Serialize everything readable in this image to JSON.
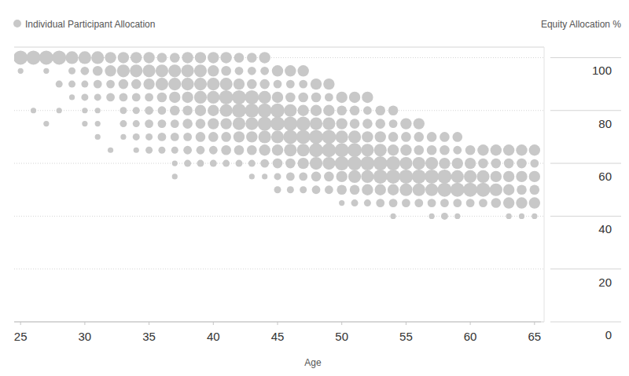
{
  "chart_data": {
    "type": "scatter",
    "x_label": "Age",
    "y_label": "Equity Allocation %",
    "legend": "top-left",
    "grid": true,
    "marker": "circle",
    "xlim": [
      24.5,
      65.5
    ],
    "xticks": [
      25,
      30,
      35,
      40,
      45,
      50,
      55,
      60,
      65
    ],
    "ylim": [
      0,
      104
    ],
    "yticks": [
      0,
      20,
      40,
      60,
      80,
      100
    ],
    "series": [
      {
        "name": "Individual Participant Allocation",
        "color": "#c8c8c8",
        "x": [
          25,
          25,
          26,
          26,
          27,
          27,
          27,
          28,
          28,
          28,
          29,
          29,
          29,
          29,
          30,
          30,
          30,
          30,
          30,
          30,
          31,
          31,
          31,
          31,
          31,
          31,
          31,
          32,
          32,
          32,
          32,
          32,
          33,
          33,
          33,
          33,
          33,
          33,
          33,
          34,
          34,
          34,
          34,
          34,
          34,
          34,
          34,
          35,
          35,
          35,
          35,
          35,
          35,
          35,
          35,
          36,
          36,
          36,
          36,
          36,
          36,
          36,
          36,
          37,
          37,
          37,
          37,
          37,
          37,
          37,
          37,
          37,
          37,
          38,
          38,
          38,
          38,
          38,
          38,
          38,
          38,
          38,
          39,
          39,
          39,
          39,
          39,
          39,
          39,
          39,
          39,
          40,
          40,
          40,
          40,
          40,
          40,
          40,
          40,
          40,
          41,
          41,
          41,
          41,
          41,
          41,
          41,
          41,
          41,
          42,
          42,
          42,
          42,
          42,
          42,
          42,
          42,
          42,
          43,
          43,
          43,
          43,
          43,
          43,
          43,
          43,
          43,
          43,
          44,
          44,
          44,
          44,
          44,
          44,
          44,
          44,
          44,
          44,
          45,
          45,
          45,
          45,
          45,
          45,
          45,
          45,
          45,
          45,
          46,
          46,
          46,
          46,
          46,
          46,
          46,
          46,
          46,
          46,
          47,
          47,
          47,
          47,
          47,
          47,
          47,
          47,
          47,
          47,
          48,
          48,
          48,
          48,
          48,
          48,
          48,
          48,
          48,
          49,
          49,
          49,
          49,
          49,
          49,
          49,
          49,
          49,
          50,
          50,
          50,
          50,
          50,
          50,
          50,
          50,
          50,
          51,
          51,
          51,
          51,
          51,
          51,
          51,
          51,
          51,
          52,
          52,
          52,
          52,
          52,
          52,
          52,
          52,
          52,
          53,
          53,
          53,
          53,
          53,
          53,
          53,
          53,
          54,
          54,
          54,
          54,
          54,
          54,
          54,
          54,
          54,
          55,
          55,
          55,
          55,
          55,
          55,
          55,
          56,
          56,
          56,
          56,
          56,
          56,
          56,
          57,
          57,
          57,
          57,
          57,
          57,
          57,
          58,
          58,
          58,
          58,
          58,
          58,
          58,
          59,
          59,
          59,
          59,
          59,
          59,
          59,
          60,
          60,
          60,
          60,
          60,
          61,
          61,
          61,
          61,
          61,
          62,
          62,
          62,
          62,
          62,
          63,
          63,
          63,
          63,
          63,
          63,
          64,
          64,
          64,
          64,
          64,
          64,
          65,
          65,
          65,
          65,
          65,
          65
        ],
        "values": [
          100,
          95,
          100,
          80,
          100,
          95,
          75,
          100,
          90,
          80,
          100,
          95,
          90,
          85,
          100,
          95,
          90,
          85,
          80,
          75,
          100,
          95,
          90,
          85,
          80,
          75,
          70,
          100,
          95,
          90,
          85,
          65,
          100,
          95,
          90,
          85,
          80,
          75,
          70,
          100,
          95,
          90,
          85,
          80,
          75,
          70,
          65,
          100,
          95,
          90,
          85,
          80,
          75,
          70,
          65,
          100,
          95,
          90,
          85,
          80,
          75,
          70,
          65,
          100,
          95,
          90,
          85,
          80,
          75,
          70,
          65,
          60,
          55,
          100,
          95,
          90,
          85,
          80,
          75,
          70,
          65,
          60,
          100,
          95,
          90,
          85,
          80,
          75,
          70,
          65,
          60,
          100,
          95,
          90,
          85,
          80,
          75,
          70,
          65,
          60,
          100,
          95,
          90,
          85,
          80,
          75,
          70,
          65,
          60,
          100,
          95,
          90,
          85,
          80,
          75,
          70,
          65,
          60,
          100,
          95,
          90,
          85,
          80,
          75,
          70,
          65,
          60,
          55,
          100,
          95,
          90,
          85,
          80,
          75,
          70,
          65,
          60,
          55,
          95,
          90,
          85,
          80,
          75,
          70,
          65,
          60,
          55,
          50,
          95,
          90,
          85,
          80,
          75,
          70,
          65,
          60,
          55,
          50,
          95,
          90,
          85,
          80,
          75,
          70,
          65,
          60,
          55,
          50,
          90,
          85,
          80,
          75,
          70,
          65,
          60,
          55,
          50,
          90,
          85,
          80,
          75,
          70,
          65,
          60,
          55,
          50,
          85,
          80,
          75,
          70,
          65,
          60,
          55,
          50,
          45,
          85,
          80,
          75,
          70,
          65,
          60,
          55,
          50,
          45,
          85,
          80,
          75,
          70,
          65,
          60,
          55,
          50,
          45,
          80,
          75,
          70,
          65,
          60,
          55,
          50,
          45,
          80,
          75,
          70,
          65,
          60,
          55,
          50,
          45,
          40,
          75,
          70,
          65,
          60,
          55,
          50,
          45,
          75,
          70,
          65,
          60,
          55,
          50,
          45,
          70,
          65,
          60,
          55,
          50,
          45,
          40,
          70,
          65,
          60,
          55,
          50,
          45,
          40,
          70,
          65,
          60,
          55,
          50,
          45,
          40,
          65,
          60,
          55,
          50,
          45,
          65,
          60,
          55,
          50,
          45,
          65,
          60,
          55,
          50,
          45,
          65,
          60,
          55,
          50,
          45,
          40,
          65,
          60,
          55,
          50,
          45,
          40,
          65,
          60,
          55,
          50,
          45,
          40
        ],
        "sizes": [
          8,
          2,
          8,
          2,
          8,
          2,
          2,
          8,
          3,
          2,
          7,
          3,
          3,
          2,
          7,
          4,
          3,
          3,
          2,
          2,
          7,
          5,
          4,
          3,
          2,
          2,
          2,
          6,
          6,
          4,
          4,
          2,
          6,
          7,
          5,
          4,
          3,
          3,
          2,
          6,
          7,
          5,
          4,
          3,
          3,
          3,
          2,
          6,
          7,
          6,
          4,
          4,
          4,
          3,
          3,
          5,
          7,
          7,
          5,
          4,
          4,
          4,
          3,
          5,
          7,
          7,
          6,
          5,
          4,
          4,
          3,
          2,
          2,
          6,
          7,
          7,
          6,
          5,
          5,
          4,
          4,
          3,
          6,
          7,
          7,
          7,
          6,
          5,
          5,
          4,
          3,
          6,
          6,
          7,
          7,
          6,
          6,
          5,
          4,
          3,
          6,
          5,
          7,
          8,
          7,
          6,
          5,
          5,
          3,
          5,
          4,
          6,
          8,
          8,
          7,
          6,
          5,
          3,
          5,
          4,
          5,
          8,
          8,
          7,
          6,
          5,
          3,
          2,
          6,
          4,
          5,
          7,
          8,
          8,
          7,
          6,
          4,
          2,
          6,
          4,
          6,
          8,
          8,
          7,
          6,
          5,
          3,
          3,
          6,
          4,
          5,
          7,
          8,
          8,
          7,
          5,
          4,
          3,
          6,
          4,
          5,
          6,
          8,
          8,
          7,
          6,
          4,
          3,
          6,
          5,
          6,
          7,
          8,
          8,
          7,
          5,
          4,
          6,
          4,
          6,
          7,
          8,
          8,
          7,
          5,
          4,
          6,
          5,
          6,
          7,
          8,
          8,
          6,
          5,
          2,
          6,
          5,
          5,
          7,
          8,
          8,
          7,
          5,
          3,
          6,
          4,
          5,
          6,
          7,
          8,
          7,
          6,
          3,
          5,
          5,
          6,
          7,
          8,
          8,
          6,
          4,
          5,
          4,
          5,
          6,
          8,
          8,
          6,
          4,
          2,
          6,
          5,
          6,
          7,
          8,
          7,
          4,
          6,
          5,
          5,
          7,
          8,
          7,
          4,
          5,
          5,
          7,
          8,
          7,
          4,
          2,
          5,
          5,
          6,
          8,
          8,
          4,
          3,
          5,
          4,
          6,
          7,
          8,
          4,
          2,
          5,
          6,
          7,
          8,
          4,
          6,
          5,
          7,
          8,
          4,
          6,
          5,
          6,
          7,
          5,
          6,
          5,
          6,
          6,
          6,
          2,
          6,
          5,
          6,
          5,
          6,
          2,
          6,
          4,
          6,
          5,
          6,
          2
        ]
      }
    ]
  }
}
